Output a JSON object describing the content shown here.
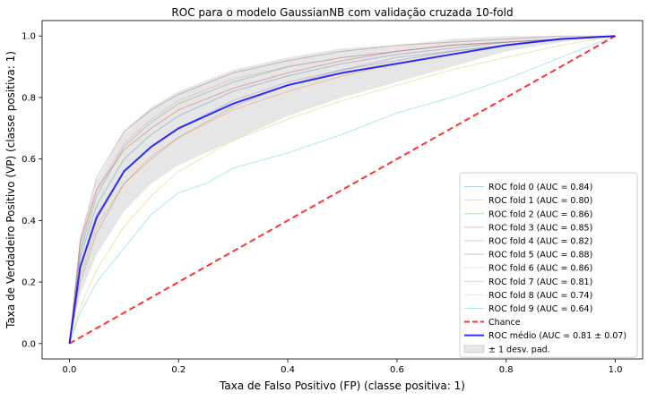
{
  "chart_data": {
    "type": "line",
    "title": "ROC para o modelo GaussianNB com validação cruzada 10-fold",
    "xlabel": "Taxa de Falso Positivo (FP) (classe positiva: 1)",
    "ylabel": "Taxa de Verdadeiro Positivo (VP) (classe positiva: 1)",
    "xlim": [
      -0.05,
      1.05
    ],
    "ylim": [
      -0.05,
      1.05
    ],
    "xticks": [
      "0.0",
      "0.2",
      "0.4",
      "0.6",
      "0.8",
      "1.0"
    ],
    "yticks": [
      "0.0",
      "0.2",
      "0.4",
      "0.6",
      "0.8",
      "1.0"
    ],
    "grid": false,
    "legend_position": "lower-right",
    "series": [
      {
        "name": "ROC fold 0 (AUC = 0.84)",
        "color": "#1f77b4",
        "x": [
          0,
          0.02,
          0.05,
          0.1,
          0.15,
          0.2,
          0.3,
          0.4,
          0.5,
          0.6,
          0.7,
          0.8,
          0.9,
          1.0
        ],
        "y": [
          0,
          0.28,
          0.45,
          0.6,
          0.68,
          0.74,
          0.82,
          0.87,
          0.91,
          0.94,
          0.96,
          0.98,
          0.99,
          1.0
        ]
      },
      {
        "name": "ROC fold 1 (AUC = 0.80)",
        "color": "#ff7f0e",
        "x": [
          0,
          0.02,
          0.05,
          0.1,
          0.15,
          0.2,
          0.3,
          0.4,
          0.5,
          0.6,
          0.7,
          0.8,
          0.9,
          1.0
        ],
        "y": [
          0,
          0.22,
          0.38,
          0.52,
          0.61,
          0.67,
          0.76,
          0.82,
          0.87,
          0.91,
          0.94,
          0.97,
          0.99,
          1.0
        ]
      },
      {
        "name": "ROC fold 2 (AUC = 0.86)",
        "color": "#2ca02c",
        "x": [
          0,
          0.02,
          0.05,
          0.1,
          0.15,
          0.2,
          0.3,
          0.4,
          0.5,
          0.6,
          0.7,
          0.8,
          0.9,
          1.0
        ],
        "y": [
          0,
          0.3,
          0.48,
          0.64,
          0.72,
          0.78,
          0.85,
          0.9,
          0.93,
          0.95,
          0.97,
          0.98,
          0.99,
          1.0
        ]
      },
      {
        "name": "ROC fold 3 (AUC = 0.85)",
        "color": "#d62728",
        "x": [
          0,
          0.02,
          0.05,
          0.1,
          0.15,
          0.2,
          0.3,
          0.4,
          0.5,
          0.6,
          0.7,
          0.8,
          0.9,
          1.0
        ],
        "y": [
          0,
          0.33,
          0.5,
          0.63,
          0.7,
          0.76,
          0.83,
          0.88,
          0.92,
          0.95,
          0.97,
          0.98,
          0.99,
          1.0
        ]
      },
      {
        "name": "ROC fold 4 (AUC = 0.82)",
        "color": "#9467bd",
        "x": [
          0,
          0.02,
          0.05,
          0.1,
          0.15,
          0.2,
          0.3,
          0.4,
          0.5,
          0.6,
          0.7,
          0.8,
          0.9,
          1.0
        ],
        "y": [
          0,
          0.25,
          0.42,
          0.56,
          0.64,
          0.7,
          0.79,
          0.85,
          0.89,
          0.93,
          0.95,
          0.97,
          0.99,
          1.0
        ]
      },
      {
        "name": "ROC fold 5 (AUC = 0.88)",
        "color": "#8c564b",
        "x": [
          0,
          0.02,
          0.05,
          0.1,
          0.15,
          0.2,
          0.3,
          0.4,
          0.5,
          0.6,
          0.7,
          0.8,
          0.9,
          1.0
        ],
        "y": [
          0,
          0.34,
          0.54,
          0.69,
          0.76,
          0.81,
          0.88,
          0.92,
          0.95,
          0.97,
          0.98,
          0.99,
          1.0,
          1.0
        ]
      },
      {
        "name": "ROC fold 6 (AUC = 0.86)",
        "color": "#e377c2",
        "x": [
          0,
          0.02,
          0.05,
          0.1,
          0.15,
          0.2,
          0.3,
          0.4,
          0.5,
          0.6,
          0.7,
          0.8,
          0.9,
          1.0
        ],
        "y": [
          0,
          0.31,
          0.5,
          0.65,
          0.73,
          0.79,
          0.86,
          0.9,
          0.93,
          0.95,
          0.97,
          0.98,
          0.99,
          1.0
        ]
      },
      {
        "name": "ROC fold 7 (AUC = 0.81)",
        "color": "#7f7f7f",
        "x": [
          0,
          0.02,
          0.05,
          0.1,
          0.15,
          0.2,
          0.3,
          0.4,
          0.5,
          0.6,
          0.7,
          0.8,
          0.9,
          1.0
        ],
        "y": [
          0,
          0.2,
          0.36,
          0.52,
          0.6,
          0.67,
          0.77,
          0.84,
          0.89,
          0.92,
          0.95,
          0.97,
          0.99,
          1.0
        ]
      },
      {
        "name": "ROC fold 8 (AUC = 0.74)",
        "color": "#bcbd22",
        "x": [
          0,
          0.02,
          0.05,
          0.1,
          0.15,
          0.2,
          0.3,
          0.4,
          0.5,
          0.6,
          0.7,
          0.8,
          0.9,
          1.0
        ],
        "y": [
          0,
          0.12,
          0.24,
          0.38,
          0.48,
          0.56,
          0.66,
          0.73,
          0.79,
          0.84,
          0.89,
          0.93,
          0.97,
          1.0
        ]
      },
      {
        "name": "ROC fold 9 (AUC = 0.64)",
        "color": "#17becf",
        "x": [
          0,
          0.02,
          0.05,
          0.1,
          0.15,
          0.2,
          0.25,
          0.3,
          0.4,
          0.5,
          0.6,
          0.7,
          0.8,
          0.9,
          1.0
        ],
        "y": [
          0,
          0.1,
          0.2,
          0.31,
          0.42,
          0.49,
          0.52,
          0.57,
          0.62,
          0.68,
          0.75,
          0.8,
          0.86,
          0.93,
          1.0
        ]
      }
    ],
    "chance": {
      "name": "Chance",
      "color": "#ff0000",
      "x": [
        0,
        1
      ],
      "y": [
        0,
        1
      ]
    },
    "mean": {
      "name": "ROC médio (AUC = 0.81 ± 0.07)",
      "color": "#0000ff",
      "x": [
        0,
        0.02,
        0.05,
        0.1,
        0.15,
        0.2,
        0.3,
        0.4,
        0.5,
        0.6,
        0.7,
        0.8,
        0.9,
        1.0
      ],
      "y": [
        0,
        0.25,
        0.41,
        0.56,
        0.64,
        0.7,
        0.78,
        0.84,
        0.88,
        0.91,
        0.94,
        0.97,
        0.99,
        1.0
      ]
    },
    "band": {
      "name": "± 1 desv. pad.",
      "color": "#808080",
      "x": [
        0,
        0.02,
        0.05,
        0.1,
        0.15,
        0.2,
        0.3,
        0.4,
        0.5,
        0.6,
        0.7,
        0.8,
        0.9,
        1.0
      ],
      "lower": [
        0,
        0.16,
        0.29,
        0.43,
        0.52,
        0.58,
        0.66,
        0.74,
        0.8,
        0.85,
        0.9,
        0.95,
        0.98,
        1.0
      ],
      "upper": [
        0,
        0.34,
        0.53,
        0.69,
        0.77,
        0.82,
        0.89,
        0.93,
        0.96,
        0.97,
        0.99,
        1.0,
        1.0,
        1.0
      ]
    }
  }
}
